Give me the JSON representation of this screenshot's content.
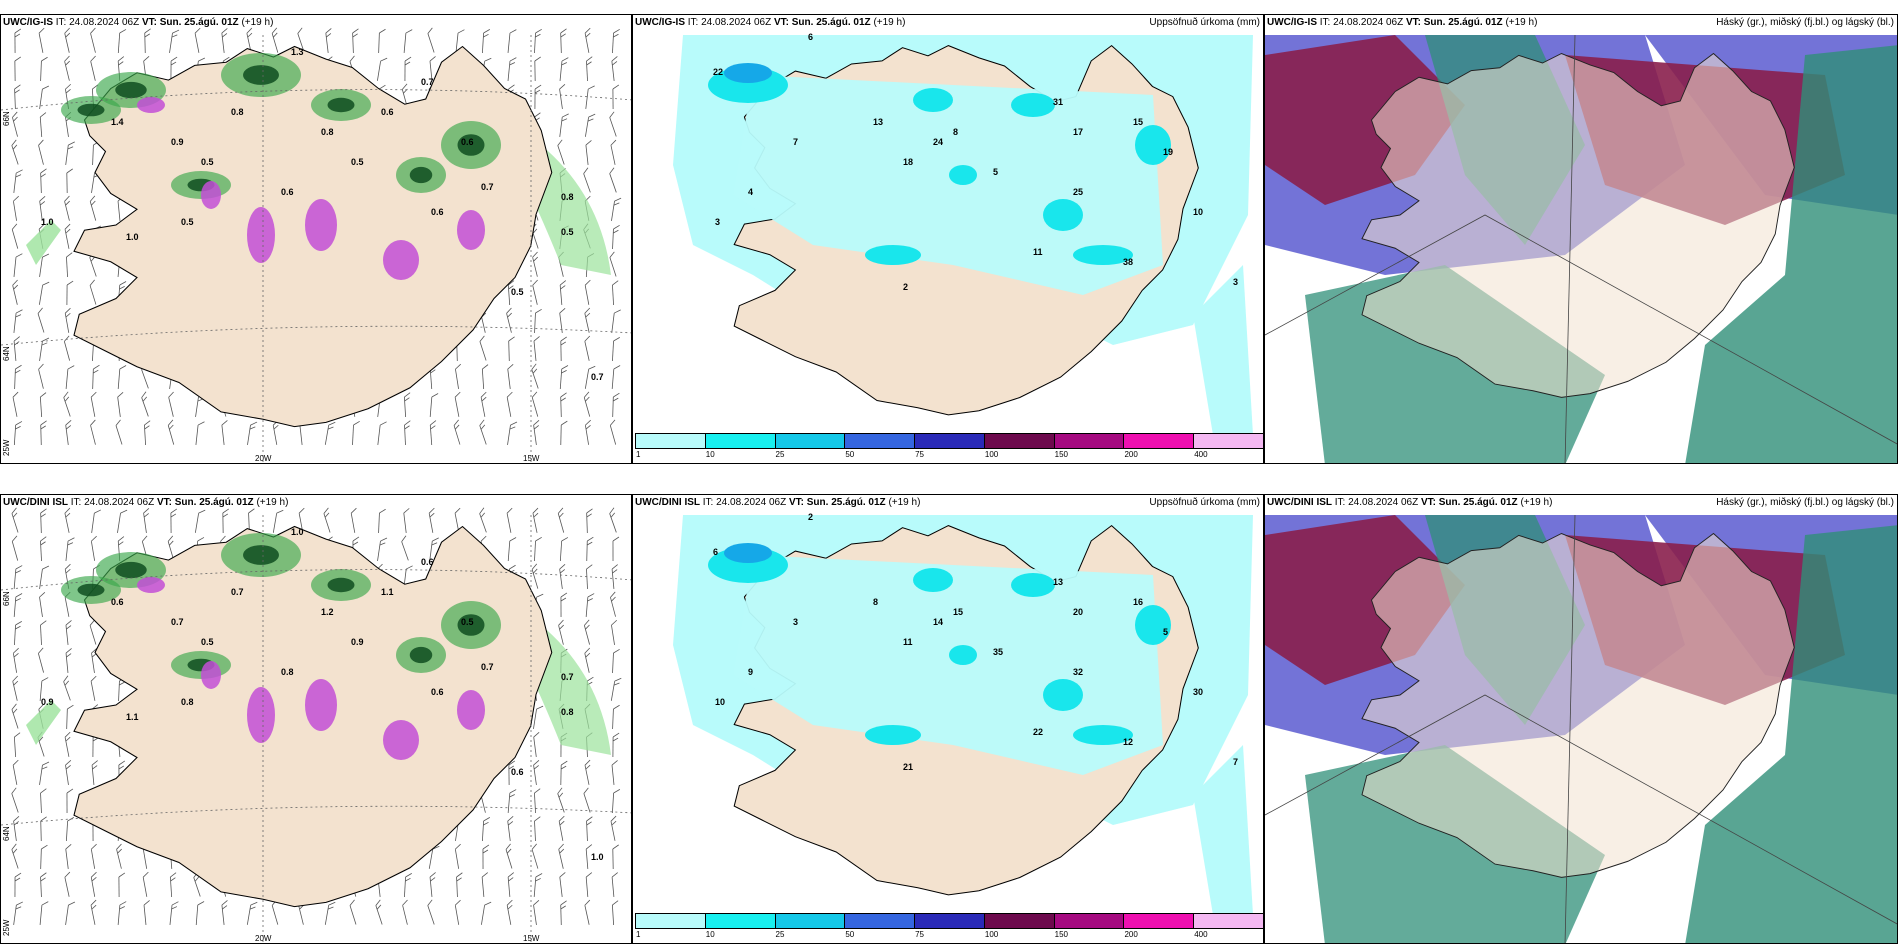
{
  "panels": [
    {
      "id": "igis-wind",
      "model": "UWC/IG-IS",
      "it": "IT: 24.08.2024 06Z",
      "vt": "VT: Sun. 25.ágú. 01Z",
      "lead": "(+19 h)",
      "right_title": "",
      "lat_labels": [
        "66N",
        "64N"
      ],
      "lon_labels": [
        "25W",
        "20W",
        "15W"
      ],
      "values": [
        "1.3",
        "1.0",
        "0.9",
        "0.7",
        "0.5",
        "0.6",
        "0.8",
        "1.0",
        "0.7",
        "0.5",
        "0.6",
        "1.4",
        "0.8",
        "0.5",
        "0.6",
        "0.7",
        "0.5",
        "0.6",
        "0.5",
        "0.8"
      ]
    },
    {
      "id": "igis-precip",
      "model": "UWC/IG-IS",
      "it": "IT: 24.08.2024 06Z",
      "vt": "VT: Sun. 25.ágú. 01Z",
      "lead": "(+19 h)",
      "right_title": "Uppsöfnuð úrkoma (mm)",
      "values": [
        "6",
        "4",
        "3",
        "2",
        "13",
        "8",
        "5",
        "31",
        "17",
        "25",
        "15",
        "38",
        "11",
        "18",
        "24",
        "22",
        "7",
        "19",
        "10",
        "3"
      ]
    },
    {
      "id": "igis-cloud",
      "model": "UWC/IG-IS",
      "it": "IT: 24.08.2024 06Z",
      "vt": "VT: Sun. 25.ágú. 01Z",
      "lead": "(+19 h)",
      "right_title": "Háský (gr.), miðský (fj.bl.) og lágský (bl.)"
    },
    {
      "id": "dini-wind",
      "model": "UWC/DINI ISL",
      "it": "IT: 24.08.2024 06Z",
      "vt": "VT: Sun. 25.ágú. 01Z",
      "lead": "(+19 h)",
      "right_title": "",
      "lat_labels": [
        "66N",
        "64N"
      ],
      "lon_labels": [
        "25W",
        "20W",
        "15W"
      ],
      "values": [
        "1.0",
        "1.1",
        "0.7",
        "0.6",
        "0.8",
        "0.5",
        "0.7",
        "0.9",
        "1.0",
        "0.6",
        "0.8",
        "0.6",
        "0.7",
        "0.9",
        "1.1",
        "0.7",
        "0.8",
        "0.6",
        "0.5",
        "1.2"
      ]
    },
    {
      "id": "dini-precip",
      "model": "UWC/DINI ISL",
      "it": "IT: 24.08.2024 06Z",
      "vt": "VT: Sun. 25.ágú. 01Z",
      "lead": "(+19 h)",
      "right_title": "Uppsöfnuð úrkoma (mm)",
      "values": [
        "2",
        "9",
        "10",
        "21",
        "8",
        "15",
        "35",
        "13",
        "20",
        "32",
        "16",
        "12",
        "22",
        "11",
        "14",
        "6",
        "3",
        "5",
        "30",
        "7"
      ]
    },
    {
      "id": "dini-cloud",
      "model": "UWC/DINI ISL",
      "it": "IT: 24.08.2024 06Z",
      "vt": "VT: Sun. 25.ágú. 01Z",
      "lead": "(+19 h)",
      "right_title": "Háský (gr.), miðský (fj.bl.) og lágský (bl.)"
    }
  ],
  "colorbar": {
    "ticks": [
      "1",
      "10",
      "25",
      "50",
      "75",
      "100",
      "150",
      "200",
      "400"
    ],
    "colors": [
      "#b8fbfb",
      "#19f0f0",
      "#15c8e8",
      "#3566e0",
      "#2a2ab8",
      "#6d0a4d",
      "#a50a80",
      "#ee10b0",
      "#f4b8f2"
    ]
  },
  "colors": {
    "land": "#f3e2cf",
    "precip_light": "#b8fbfb",
    "wind_green": "#9be29b",
    "cloud_high": "#2f8f78",
    "cloud_mid": "#8a1f4d",
    "cloud_low": "#5a5ad0"
  }
}
